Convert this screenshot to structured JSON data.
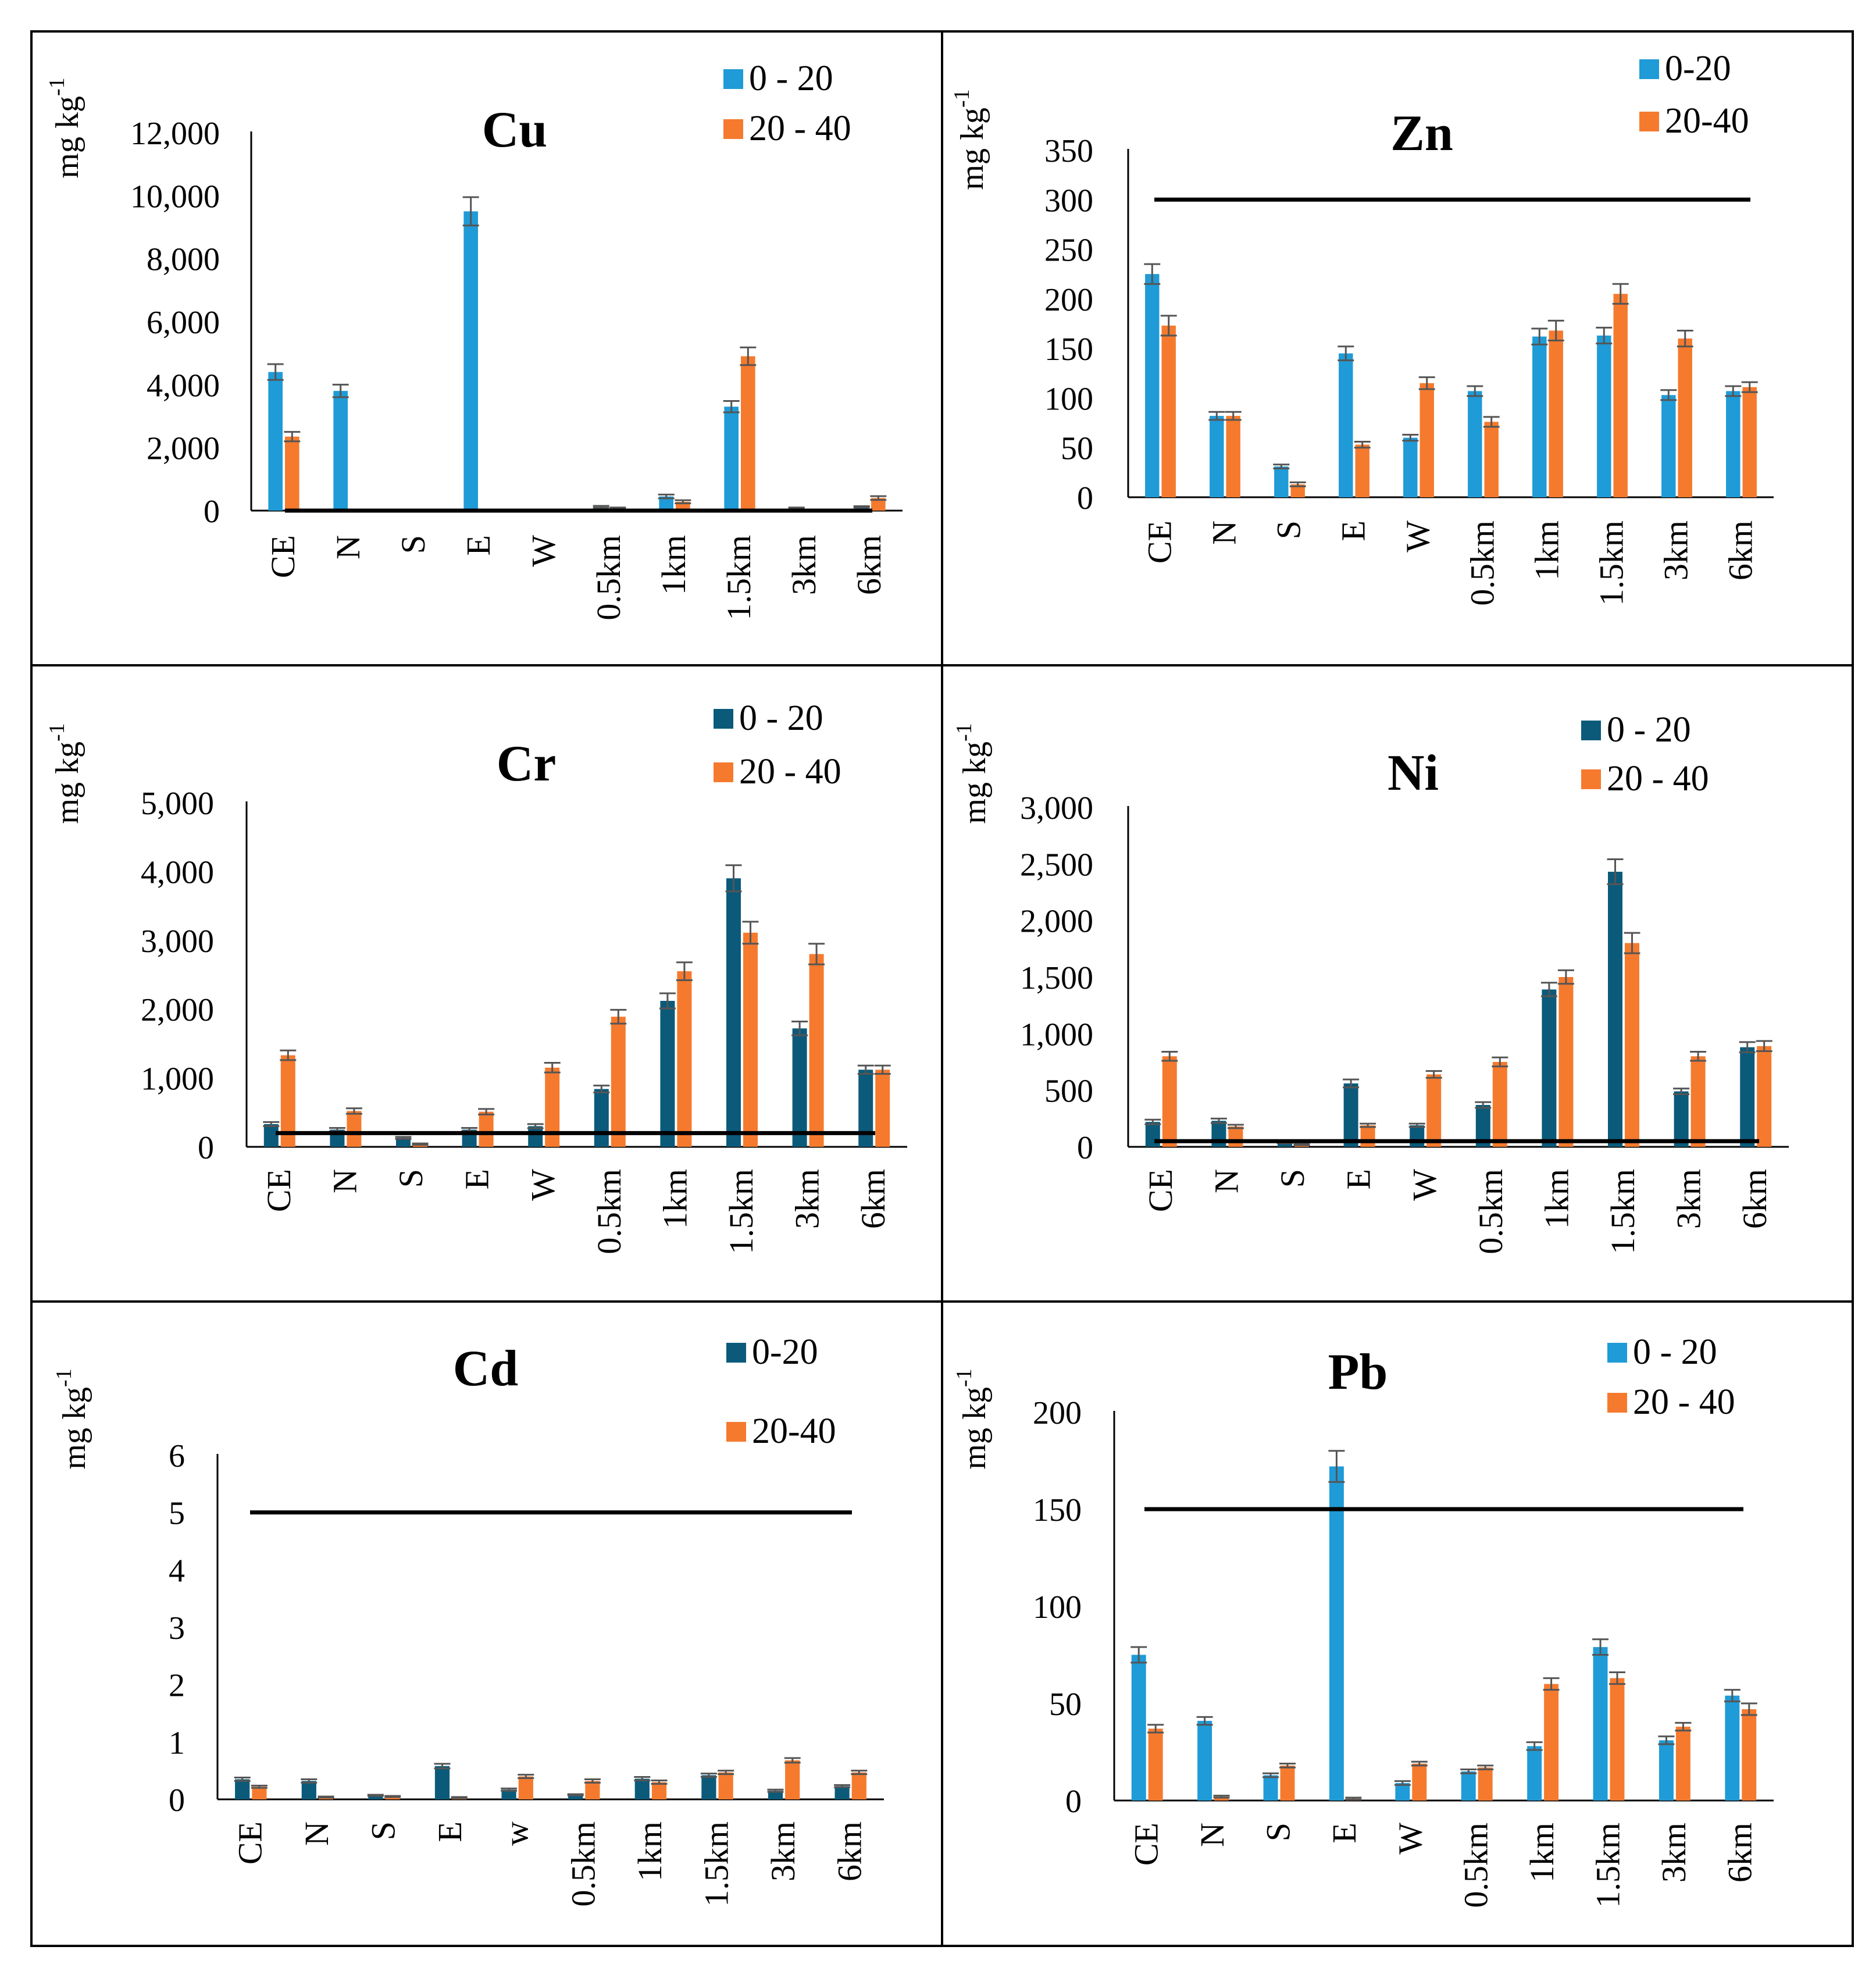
{
  "colors": {
    "light_blue": "#1F9BD7",
    "dark_teal": "#0B5A7A",
    "orange": "#F57A2E",
    "threshold_line": "#000000",
    "error_bar": "#555555"
  },
  "unit_label": "mg kg",
  "unit_exponent": "-1",
  "chart_data": [
    {
      "type": "bar",
      "title": "Cu",
      "ylabel": "mg kg-1",
      "categories": [
        "CE",
        "N",
        "S",
        "E",
        "W",
        "0.5km",
        "1km",
        "1.5km",
        "3km",
        "6km"
      ],
      "ylim": [
        0,
        12000
      ],
      "yticks": [
        "0",
        "2,000",
        "4,000",
        "6,000",
        "8,000",
        "10,000",
        "12,000"
      ],
      "series": [
        {
          "name": "0 - 20",
          "color": "#1F9BD7",
          "values": [
            4400,
            3800,
            0,
            9500,
            0,
            120,
            450,
            3300,
            80,
            120
          ],
          "errors": [
            250,
            200,
            0,
            450,
            0,
            30,
            60,
            180,
            20,
            20
          ]
        },
        {
          "name": "20 - 40",
          "color": "#F57A2E",
          "values": [
            2350,
            0,
            0,
            0,
            0,
            80,
            280,
            4900,
            0,
            400
          ],
          "errors": [
            150,
            0,
            0,
            0,
            0,
            20,
            50,
            280,
            0,
            60
          ]
        }
      ],
      "threshold": 0
    },
    {
      "type": "bar",
      "title": "Zn",
      "ylabel": "mg kg-1",
      "categories": [
        "CE",
        "N",
        "S",
        "E",
        "W",
        "0.5km",
        "1km",
        "1.5km",
        "3km",
        "6km"
      ],
      "ylim": [
        0,
        350
      ],
      "yticks": [
        "0",
        "50",
        "100",
        "150",
        "200",
        "250",
        "300",
        "350"
      ],
      "series": [
        {
          "name": "0-20",
          "color": "#1F9BD7",
          "values": [
            225,
            82,
            31,
            145,
            60,
            107,
            162,
            163,
            103,
            107
          ],
          "errors": [
            10,
            4,
            2,
            7,
            3,
            5,
            8,
            8,
            5,
            5
          ]
        },
        {
          "name": "20-40",
          "color": "#F57A2E",
          "values": [
            173,
            82,
            13,
            53,
            115,
            76,
            168,
            205,
            160,
            111
          ],
          "errors": [
            10,
            4,
            2,
            3,
            6,
            5,
            10,
            10,
            8,
            5
          ]
        }
      ],
      "threshold": 300
    },
    {
      "type": "bar",
      "title": "Cr",
      "ylabel": "mg kg-1",
      "categories": [
        "CE",
        "N",
        "S",
        "E",
        "W",
        "0.5km",
        "1km",
        "1.5km",
        "3km",
        "6km"
      ],
      "ylim": [
        0,
        5000
      ],
      "yticks": [
        "0",
        "1,000",
        "2,000",
        "3,000",
        "4,000",
        "5,000"
      ],
      "series": [
        {
          "name": "0 - 20",
          "color": "#0B5A7A",
          "values": [
            330,
            250,
            130,
            250,
            300,
            840,
            2120,
            3900,
            1720,
            1120
          ],
          "errors": [
            30,
            25,
            15,
            25,
            30,
            50,
            110,
            190,
            100,
            60
          ]
        },
        {
          "name": "20 - 40",
          "color": "#F57A2E",
          "values": [
            1330,
            520,
            40,
            510,
            1150,
            1890,
            2550,
            3110,
            2800,
            1120
          ],
          "errors": [
            70,
            40,
            10,
            40,
            70,
            100,
            130,
            160,
            150,
            60
          ]
        }
      ],
      "threshold": 200
    },
    {
      "type": "bar",
      "title": "Ni",
      "ylabel": "mg kg-1",
      "categories": [
        "CE",
        "N",
        "S",
        "E",
        "W",
        "0.5km",
        "1km",
        "1.5km",
        "3km",
        "6km"
      ],
      "ylim": [
        0,
        3000
      ],
      "yticks": [
        "0",
        "500",
        "1,000",
        "1,500",
        "2,000",
        "2,500",
        "3,000"
      ],
      "series": [
        {
          "name": "0 - 20",
          "color": "#0B5A7A",
          "values": [
            220,
            230,
            40,
            560,
            190,
            370,
            1390,
            2430,
            490,
            880
          ],
          "errors": [
            20,
            20,
            8,
            35,
            15,
            25,
            60,
            110,
            25,
            45
          ]
        },
        {
          "name": "20 - 40",
          "color": "#F57A2E",
          "values": [
            800,
            180,
            20,
            190,
            640,
            750,
            1500,
            1800,
            800,
            890
          ],
          "errors": [
            40,
            15,
            5,
            15,
            30,
            40,
            60,
            90,
            40,
            45
          ]
        }
      ],
      "threshold": 50
    },
    {
      "type": "bar",
      "title": "Cd",
      "ylabel": "mg kg-1",
      "categories": [
        "CE",
        "N",
        "S",
        "E",
        "w",
        "0.5km",
        "1km",
        "1.5km",
        "3km",
        "6km"
      ],
      "ylim": [
        0,
        6
      ],
      "yticks": [
        "0",
        "1",
        "2",
        "3",
        "4",
        "5",
        "6"
      ],
      "series": [
        {
          "name": "0-20",
          "color": "#0B5A7A",
          "values": [
            0.35,
            0.32,
            0.07,
            0.58,
            0.17,
            0.08,
            0.36,
            0.42,
            0.15,
            0.23
          ],
          "errors": [
            0.03,
            0.03,
            0.01,
            0.04,
            0.02,
            0.01,
            0.03,
            0.03,
            0.02,
            0.02
          ]
        },
        {
          "name": "20-40",
          "color": "#F57A2E",
          "values": [
            0.22,
            0.04,
            0.05,
            0.03,
            0.4,
            0.32,
            0.3,
            0.47,
            0.68,
            0.47
          ],
          "errors": [
            0.02,
            0.01,
            0.01,
            0.01,
            0.03,
            0.03,
            0.03,
            0.03,
            0.04,
            0.03
          ]
        }
      ],
      "threshold": 5
    },
    {
      "type": "bar",
      "title": "Pb",
      "ylabel": "mg kg-1",
      "categories": [
        "CE",
        "N",
        "S",
        "E",
        "W",
        "0.5km",
        "1km",
        "1.5km",
        "3km",
        "6km"
      ],
      "ylim": [
        0,
        200
      ],
      "yticks": [
        "0",
        "50",
        "100",
        "150",
        "200"
      ],
      "series": [
        {
          "name": "0 - 20",
          "color": "#1F9BD7",
          "values": [
            75,
            41,
            13,
            172,
            9,
            15,
            28,
            79,
            31,
            54
          ],
          "errors": [
            4,
            2,
            1,
            8,
            1,
            1,
            2,
            4,
            2,
            3
          ]
        },
        {
          "name": "20 - 40",
          "color": "#F57A2E",
          "values": [
            37,
            2,
            18,
            1,
            19,
            17,
            60,
            63,
            38,
            47
          ],
          "errors": [
            2,
            0.5,
            1,
            0.5,
            1,
            1,
            3,
            3,
            2,
            3
          ]
        }
      ],
      "threshold": 150
    }
  ]
}
